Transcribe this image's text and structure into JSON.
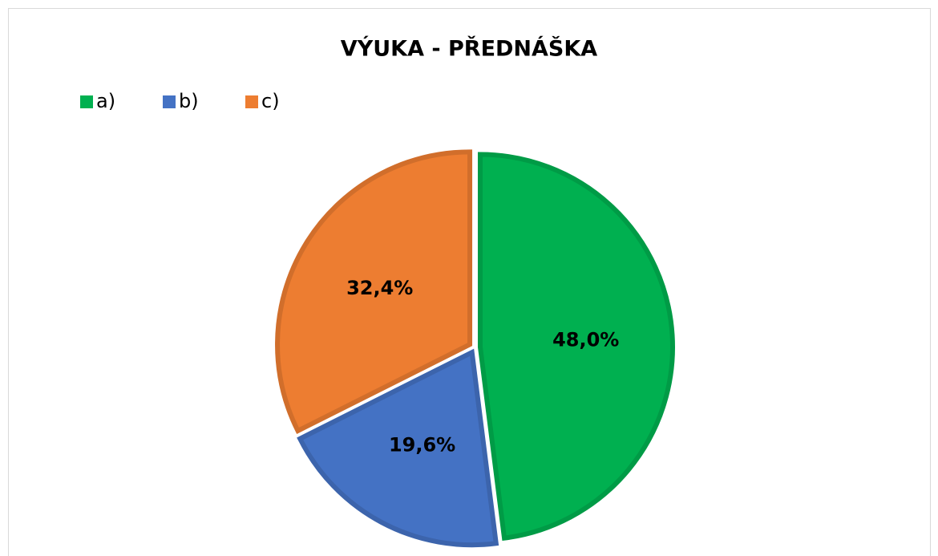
{
  "chart_data": {
    "type": "pie",
    "title": "VÝUKA - PŘEDNÁŠKA",
    "categories": [
      "a)",
      "b)",
      "c)"
    ],
    "values": [
      48.0,
      19.6,
      32.4
    ],
    "value_labels": [
      "48,0%",
      "19,6%",
      "32,4%"
    ],
    "colors": [
      "#00b050",
      "#4472c4",
      "#ed7d31"
    ],
    "legend": "top-left"
  }
}
